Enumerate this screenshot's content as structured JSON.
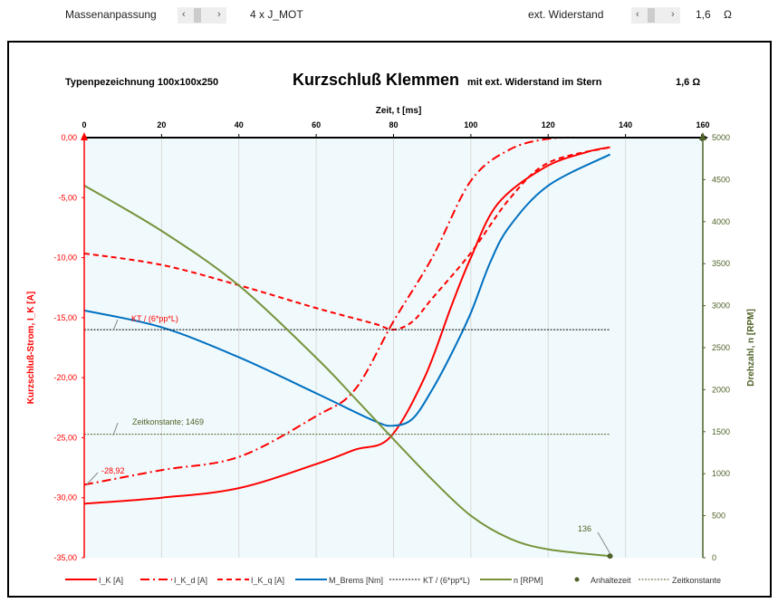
{
  "controls": {
    "mass_label": "Massenanpassung",
    "mass_value": "4  x J_MOT",
    "res_label": "ext. Widerstand",
    "res_value": "1,6",
    "res_unit": "Ω",
    "left_arrow": "‹",
    "right_arrow": "›"
  },
  "header": {
    "type": "Typenpezeichnung 100x100x250",
    "title": "Kurzschluß Klemmen",
    "subtitle": "mit ext. Widerstand im Stern",
    "resistance": "1,6  Ω"
  },
  "chart_data": {
    "type": "line",
    "xlabel": "Zeit,  t [ms]",
    "ylabel": "Kurzschluß-Strom,  I_K [A]",
    "y2label": "Drehzahl,  n [RPM]",
    "xlim": [
      0,
      160
    ],
    "ylim": [
      -35,
      0
    ],
    "y2lim": [
      0,
      5000
    ],
    "xticks": [
      "0",
      "20",
      "40",
      "60",
      "80",
      "100",
      "120",
      "140",
      "160"
    ],
    "yticks": [
      "0,00",
      "-5,00",
      "-10,00",
      "-15,00",
      "-20,00",
      "-25,00",
      "-30,00",
      "-35,00"
    ],
    "y2ticks": [
      "5000",
      "4500",
      "4000",
      "3500",
      "3000",
      "2500",
      "2000",
      "1500",
      "1000",
      "500",
      "0"
    ],
    "series": [
      {
        "name": "I_K [A]",
        "color": "#ff0000",
        "style": "solid",
        "axis": "left",
        "x": [
          0,
          20,
          40,
          60,
          70,
          79,
          88,
          95,
          100,
          107,
          119,
          130,
          136
        ],
        "y": [
          -30.5,
          -30,
          -29.2,
          -27.2,
          -26,
          -25,
          -20,
          -14,
          -10,
          -5.5,
          -2.5,
          -1.2,
          -0.8
        ]
      },
      {
        "name": "I_K_d [A]",
        "color": "#ff0000",
        "style": "dashdot",
        "axis": "left",
        "x": [
          0,
          20,
          40,
          60,
          70,
          80,
          90,
          100,
          110,
          120,
          130
        ],
        "y": [
          -28.92,
          -27.7,
          -26.6,
          -23.2,
          -21,
          -15.3,
          -10,
          -3.6,
          -1,
          -0.1,
          0
        ]
      },
      {
        "name": "I_K_q [A]",
        "color": "#ff0000",
        "style": "dashed",
        "axis": "left",
        "x": [
          0,
          20,
          40,
          60,
          75,
          80,
          85,
          90,
          100,
          110,
          120,
          136
        ],
        "y": [
          -9.65,
          -10.6,
          -12.3,
          -14.2,
          -15.5,
          -16,
          -15.3,
          -13.4,
          -9.6,
          -5.1,
          -2.1,
          -0.8
        ]
      },
      {
        "name": "M_Brems [Nm]",
        "color": "#0070c0",
        "style": "solid",
        "axis": "left",
        "x": [
          0,
          20,
          40,
          60,
          75,
          80,
          85,
          90,
          95,
          100,
          105,
          110,
          120,
          136
        ],
        "y": [
          -14.4,
          -15.8,
          -18.3,
          -21.3,
          -23.6,
          -24,
          -23.4,
          -21,
          -18,
          -14.6,
          -10.4,
          -7.4,
          -4,
          -1.4
        ]
      },
      {
        "name": "KT / (6*pp*L)",
        "color": "#000000",
        "style": "dotted",
        "axis": "left",
        "x": [
          0,
          136
        ],
        "y": [
          -16,
          -16
        ]
      },
      {
        "name": "n [RPM]",
        "color": "#77933c",
        "style": "solid",
        "axis": "right",
        "x": [
          0,
          20,
          40,
          60,
          70,
          80,
          90,
          100,
          110,
          120,
          136
        ],
        "y": [
          4430,
          3890,
          3240,
          2380,
          1900,
          1410,
          930,
          500,
          230,
          100,
          20
        ]
      },
      {
        "name": "Anhaltezeit",
        "color": "#4f6228",
        "style": "marker",
        "axis": "right",
        "x": [
          136
        ],
        "y": [
          20
        ]
      },
      {
        "name": "Zeitkonstante",
        "color": "#4f6228",
        "style": "dotted",
        "axis": "right",
        "x": [
          0,
          136
        ],
        "y": [
          1469,
          1469
        ]
      }
    ],
    "annotations": [
      {
        "text": "KT / (6*pp*L)"
      },
      {
        "text": "Zeitkonstante; 1469"
      },
      {
        "text": "-28,92"
      },
      {
        "text": "136"
      }
    ]
  }
}
